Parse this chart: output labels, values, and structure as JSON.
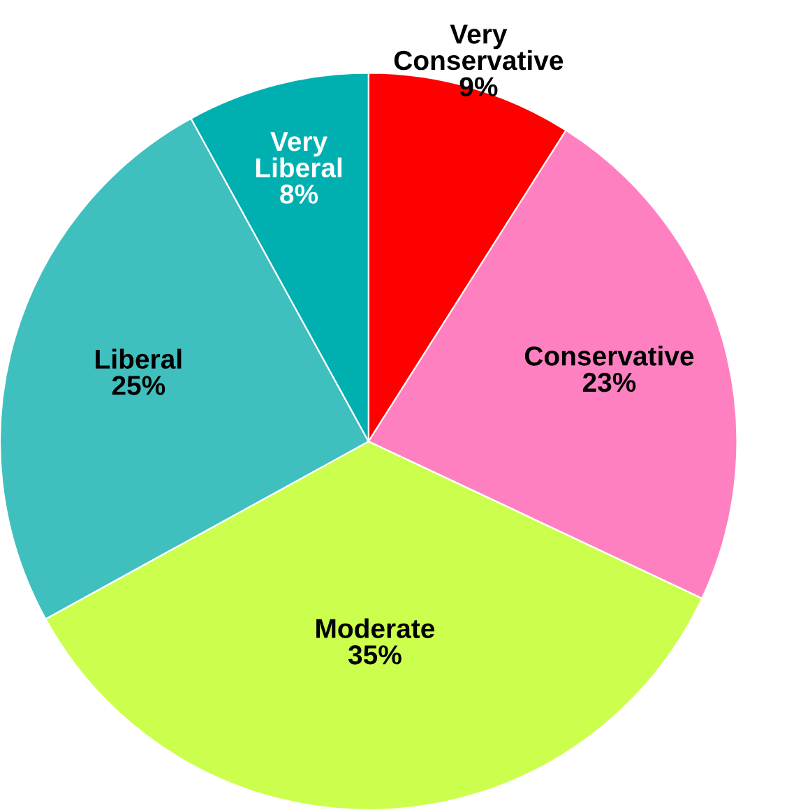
{
  "chart_data": {
    "type": "pie",
    "categories": [
      "Very Conservative",
      "Conservative",
      "Moderate",
      "Liberal",
      "Very Liberal"
    ],
    "values": [
      9,
      23,
      35,
      25,
      8
    ],
    "value_labels": [
      "9%",
      "23%",
      "35%",
      "25%",
      "8%"
    ],
    "colors": [
      "#ff0000",
      "#ff80c0",
      "#ccff4d",
      "#40bfbf",
      "#00b0b0"
    ],
    "legend": false
  }
}
